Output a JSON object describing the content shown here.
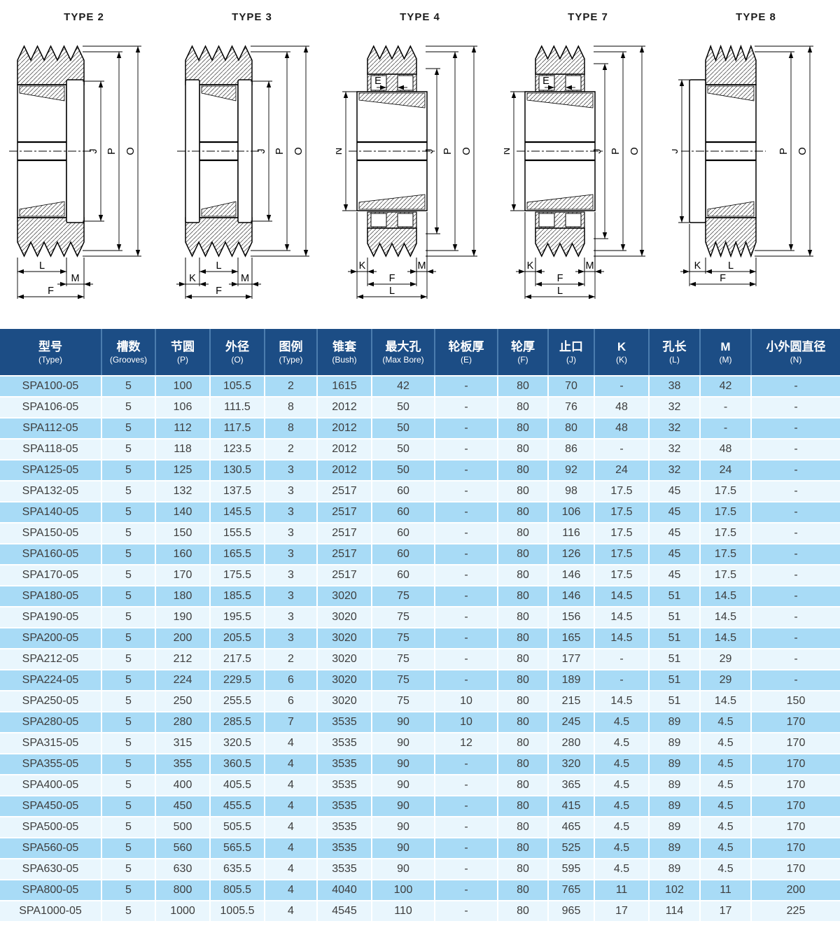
{
  "colors": {
    "header_bg": "#1c4d85",
    "header_divider": "#4c7dae",
    "row_light": "#a8dbf6",
    "row_pale": "#e9f6fd",
    "body_text": "#3d3d3d",
    "header_text": "#ffffff",
    "drawing_line": "#000000"
  },
  "diagrams": [
    {
      "title": "TYPE 2",
      "variant": "type2",
      "dims": [
        {
          "label": "J",
          "axis": "v",
          "side": "right",
          "order": 0
        },
        {
          "label": "P",
          "axis": "v",
          "side": "right",
          "order": 1
        },
        {
          "label": "O",
          "axis": "v",
          "side": "right",
          "order": 2
        },
        {
          "label": "L",
          "axis": "h",
          "span": "hub",
          "row": 0
        },
        {
          "label": "M",
          "axis": "h",
          "span": "plateR",
          "row": 1
        },
        {
          "label": "F",
          "axis": "h",
          "span": "full",
          "row": 2
        }
      ]
    },
    {
      "title": "TYPE 3",
      "variant": "type3",
      "dims": [
        {
          "label": "J",
          "axis": "v",
          "side": "right",
          "order": 0
        },
        {
          "label": "P",
          "axis": "v",
          "side": "right",
          "order": 1
        },
        {
          "label": "O",
          "axis": "v",
          "side": "right",
          "order": 2
        },
        {
          "label": "L",
          "axis": "h",
          "span": "hub",
          "row": 0
        },
        {
          "label": "K",
          "axis": "h",
          "span": "plateL",
          "row": 1
        },
        {
          "label": "M",
          "axis": "h",
          "span": "plateR",
          "row": 1
        },
        {
          "label": "F",
          "axis": "h",
          "span": "full",
          "row": 2
        }
      ]
    },
    {
      "title": "TYPE 4",
      "variant": "type4",
      "dims": [
        {
          "label": "E",
          "axis": "e"
        },
        {
          "label": "N",
          "axis": "v",
          "side": "left",
          "order": 0
        },
        {
          "label": "J",
          "axis": "v",
          "side": "right",
          "order": 0
        },
        {
          "label": "P",
          "axis": "v",
          "side": "right",
          "order": 1
        },
        {
          "label": "O",
          "axis": "v",
          "side": "right",
          "order": 2
        },
        {
          "label": "K",
          "axis": "h",
          "span": "kL",
          "row": 0
        },
        {
          "label": "M",
          "axis": "h",
          "span": "kR",
          "row": 0
        },
        {
          "label": "F",
          "axis": "h",
          "span": "rim",
          "row": 1
        },
        {
          "label": "L",
          "axis": "h",
          "span": "hub",
          "row": 2
        }
      ]
    },
    {
      "title": "TYPE 7",
      "variant": "type7",
      "dims": [
        {
          "label": "E",
          "axis": "e"
        },
        {
          "label": "N",
          "axis": "v",
          "side": "left",
          "order": 0
        },
        {
          "label": "J",
          "axis": "v",
          "side": "right",
          "order": 0
        },
        {
          "label": "P",
          "axis": "v",
          "side": "right",
          "order": 1
        },
        {
          "label": "O",
          "axis": "v",
          "side": "right",
          "order": 2
        },
        {
          "label": "K",
          "axis": "h",
          "span": "kL",
          "row": 0
        },
        {
          "label": "M",
          "axis": "h",
          "span": "kR",
          "row": 0
        },
        {
          "label": "F",
          "axis": "h",
          "span": "rim",
          "row": 1
        },
        {
          "label": "L",
          "axis": "h",
          "span": "hub",
          "row": 2
        }
      ]
    },
    {
      "title": "TYPE 8",
      "variant": "type8",
      "dims": [
        {
          "label": "J",
          "axis": "v",
          "side": "left",
          "order": 0
        },
        {
          "label": "P",
          "axis": "v",
          "side": "right",
          "order": 1
        },
        {
          "label": "O",
          "axis": "v",
          "side": "right",
          "order": 2
        },
        {
          "label": "K",
          "axis": "h",
          "span": "plateL",
          "row": 0
        },
        {
          "label": "L",
          "axis": "h",
          "span": "hub",
          "row": 0
        },
        {
          "label": "F",
          "axis": "h",
          "span": "full",
          "row": 1
        }
      ]
    }
  ],
  "table": {
    "columns": [
      {
        "zh": "型号",
        "en": "(Type)"
      },
      {
        "zh": "槽数",
        "en": "(Grooves)"
      },
      {
        "zh": "节圆",
        "en": "(P)"
      },
      {
        "zh": "外径",
        "en": "(O)"
      },
      {
        "zh": "图例",
        "en": "(Type)"
      },
      {
        "zh": "锥套",
        "en": "(Bush)"
      },
      {
        "zh": "最大孔",
        "en": "(Max Bore)"
      },
      {
        "zh": "轮板厚",
        "en": "(E)"
      },
      {
        "zh": "轮厚",
        "en": "(F)"
      },
      {
        "zh": "止口",
        "en": "(J)"
      },
      {
        "zh": "K",
        "en": "(K)"
      },
      {
        "zh": "孔长",
        "en": "(L)"
      },
      {
        "zh": "M",
        "en": "(M)"
      },
      {
        "zh": "小外圆直径",
        "en": "(N)"
      }
    ],
    "rows": [
      [
        "SPA100-05",
        "5",
        "100",
        "105.5",
        "2",
        "1615",
        "42",
        "-",
        "80",
        "70",
        "-",
        "38",
        "42",
        "-"
      ],
      [
        "SPA106-05",
        "5",
        "106",
        "111.5",
        "8",
        "2012",
        "50",
        "-",
        "80",
        "76",
        "48",
        "32",
        "-",
        "-"
      ],
      [
        "SPA112-05",
        "5",
        "112",
        "117.5",
        "8",
        "2012",
        "50",
        "-",
        "80",
        "80",
        "48",
        "32",
        "-",
        "-"
      ],
      [
        "SPA118-05",
        "5",
        "118",
        "123.5",
        "2",
        "2012",
        "50",
        "-",
        "80",
        "86",
        "-",
        "32",
        "48",
        "-"
      ],
      [
        "SPA125-05",
        "5",
        "125",
        "130.5",
        "3",
        "2012",
        "50",
        "-",
        "80",
        "92",
        "24",
        "32",
        "24",
        "-"
      ],
      [
        "SPA132-05",
        "5",
        "132",
        "137.5",
        "3",
        "2517",
        "60",
        "-",
        "80",
        "98",
        "17.5",
        "45",
        "17.5",
        "-"
      ],
      [
        "SPA140-05",
        "5",
        "140",
        "145.5",
        "3",
        "2517",
        "60",
        "-",
        "80",
        "106",
        "17.5",
        "45",
        "17.5",
        "-"
      ],
      [
        "SPA150-05",
        "5",
        "150",
        "155.5",
        "3",
        "2517",
        "60",
        "-",
        "80",
        "116",
        "17.5",
        "45",
        "17.5",
        "-"
      ],
      [
        "SPA160-05",
        "5",
        "160",
        "165.5",
        "3",
        "2517",
        "60",
        "-",
        "80",
        "126",
        "17.5",
        "45",
        "17.5",
        "-"
      ],
      [
        "SPA170-05",
        "5",
        "170",
        "175.5",
        "3",
        "2517",
        "60",
        "-",
        "80",
        "146",
        "17.5",
        "45",
        "17.5",
        "-"
      ],
      [
        "SPA180-05",
        "5",
        "180",
        "185.5",
        "3",
        "3020",
        "75",
        "-",
        "80",
        "146",
        "14.5",
        "51",
        "14.5",
        "-"
      ],
      [
        "SPA190-05",
        "5",
        "190",
        "195.5",
        "3",
        "3020",
        "75",
        "-",
        "80",
        "156",
        "14.5",
        "51",
        "14.5",
        "-"
      ],
      [
        "SPA200-05",
        "5",
        "200",
        "205.5",
        "3",
        "3020",
        "75",
        "-",
        "80",
        "165",
        "14.5",
        "51",
        "14.5",
        "-"
      ],
      [
        "SPA212-05",
        "5",
        "212",
        "217.5",
        "2",
        "3020",
        "75",
        "-",
        "80",
        "177",
        "-",
        "51",
        "29",
        "-"
      ],
      [
        "SPA224-05",
        "5",
        "224",
        "229.5",
        "6",
        "3020",
        "75",
        "-",
        "80",
        "189",
        "-",
        "51",
        "29",
        "-"
      ],
      [
        "SPA250-05",
        "5",
        "250",
        "255.5",
        "6",
        "3020",
        "75",
        "10",
        "80",
        "215",
        "14.5",
        "51",
        "14.5",
        "150"
      ],
      [
        "SPA280-05",
        "5",
        "280",
        "285.5",
        "7",
        "3535",
        "90",
        "10",
        "80",
        "245",
        "4.5",
        "89",
        "4.5",
        "170"
      ],
      [
        "SPA315-05",
        "5",
        "315",
        "320.5",
        "4",
        "3535",
        "90",
        "12",
        "80",
        "280",
        "4.5",
        "89",
        "4.5",
        "170"
      ],
      [
        "SPA355-05",
        "5",
        "355",
        "360.5",
        "4",
        "3535",
        "90",
        "-",
        "80",
        "320",
        "4.5",
        "89",
        "4.5",
        "170"
      ],
      [
        "SPA400-05",
        "5",
        "400",
        "405.5",
        "4",
        "3535",
        "90",
        "-",
        "80",
        "365",
        "4.5",
        "89",
        "4.5",
        "170"
      ],
      [
        "SPA450-05",
        "5",
        "450",
        "455.5",
        "4",
        "3535",
        "90",
        "-",
        "80",
        "415",
        "4.5",
        "89",
        "4.5",
        "170"
      ],
      [
        "SPA500-05",
        "5",
        "500",
        "505.5",
        "4",
        "3535",
        "90",
        "-",
        "80",
        "465",
        "4.5",
        "89",
        "4.5",
        "170"
      ],
      [
        "SPA560-05",
        "5",
        "560",
        "565.5",
        "4",
        "3535",
        "90",
        "-",
        "80",
        "525",
        "4.5",
        "89",
        "4.5",
        "170"
      ],
      [
        "SPA630-05",
        "5",
        "630",
        "635.5",
        "4",
        "3535",
        "90",
        "-",
        "80",
        "595",
        "4.5",
        "89",
        "4.5",
        "170"
      ],
      [
        "SPA800-05",
        "5",
        "800",
        "805.5",
        "4",
        "4040",
        "100",
        "-",
        "80",
        "765",
        "11",
        "102",
        "11",
        "200"
      ],
      [
        "SPA1000-05",
        "5",
        "1000",
        "1005.5",
        "4",
        "4545",
        "110",
        "-",
        "80",
        "965",
        "17",
        "114",
        "17",
        "225"
      ]
    ]
  }
}
